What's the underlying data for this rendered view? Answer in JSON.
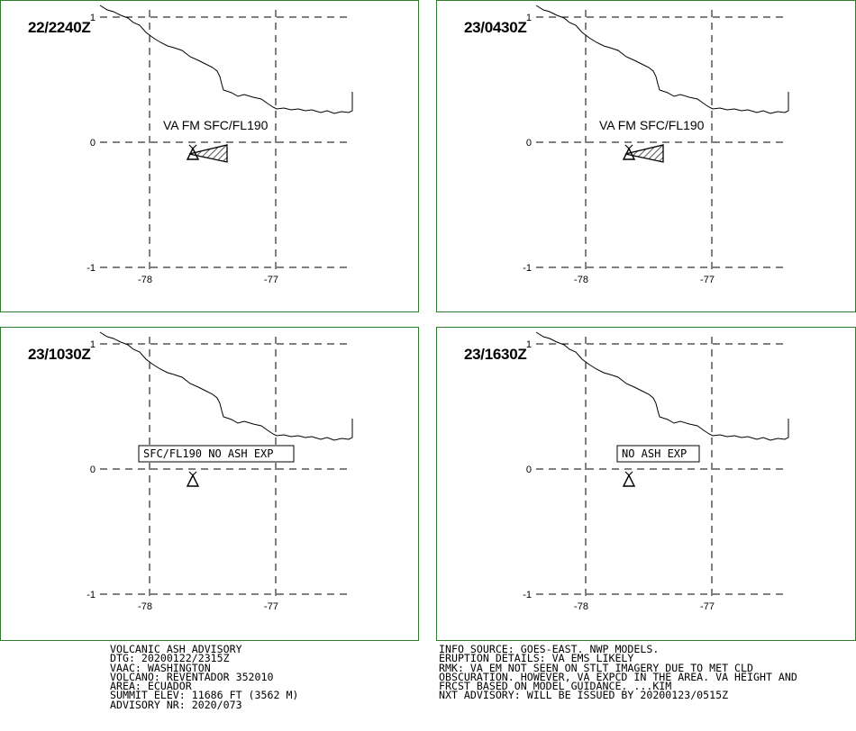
{
  "colors": {
    "frame": "#2e7d2e",
    "grid": "#000000",
    "coast": "#000000"
  },
  "axes": {
    "lat_ticks": [
      "1",
      "0",
      "-1"
    ],
    "lon_ticks": [
      "-78",
      "-77"
    ]
  },
  "panels": [
    {
      "id": "p0",
      "time": "22/2240Z",
      "label": "VA FM SFC/FL190",
      "label_style": "plain",
      "ash_cloud": true
    },
    {
      "id": "p1",
      "time": "23/0430Z",
      "label": "VA FM SFC/FL190",
      "label_style": "plain",
      "ash_cloud": true
    },
    {
      "id": "p2",
      "time": "23/1030Z",
      "label": "SFC/FL190 NO ASH EXP",
      "label_style": "boxed",
      "ash_cloud": false
    },
    {
      "id": "p3",
      "time": "23/1630Z",
      "label": "NO ASH EXP",
      "label_style": "boxed",
      "ash_cloud": false
    }
  ],
  "advisory_left": [
    "VOLCANIC ASH ADVISORY",
    "DTG: 20200122/2315Z",
    "VAAC: WASHINGTON",
    "VOLCANO: REVENTADOR 352010",
    "AREA: ECUADOR",
    "SUMMIT ELEV: 11686 FT (3562 M)",
    "ADVISORY NR: 2020/073"
  ],
  "advisory_right": [
    "INFO SOURCE: GOES-EAST. NWP MODELS.",
    "ERUPTION DETAILS: VA EMS LIKELY",
    "RMK: VA EM NOT SEEN ON STLT IMAGERY DUE TO MET CLD",
    "OBSCURATION. HOWEVER, VA EXPCD IN THE AREA. VA HEIGHT AND",
    "FRCST BASED ON MODEL GUIDANCE. ...KIM",
    "NXT ADVISORY: WILL BE ISSUED BY 20200123/0515Z"
  ],
  "icons": {
    "volcano": "volcano-triangle-icon"
  }
}
